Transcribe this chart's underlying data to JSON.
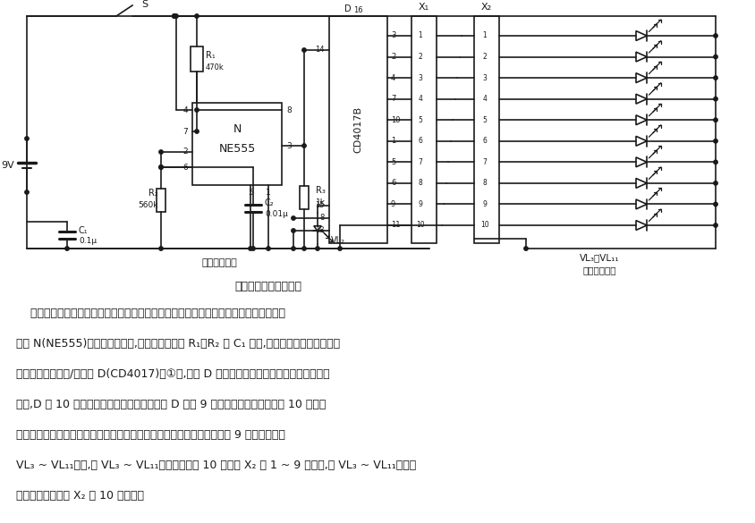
{
  "title": "电缆通断状态指示电路",
  "label_signal_out": "信号输出电路",
  "label_vl_range": "VL₃～VL₁₁",
  "label_status": "状态指示电路",
  "text_body": [
    "    该电路由信号输出电路和状态指示电路组成，它们分别接在被测电缆芯线的两端。时基",
    "电路 N(NE555)组成多谐振荡器,振荡器的频率由 R₁、R₂ 及 C₁ 决定,输出方波信号。该方波信",
    "号送至十进制计数/译码器 D(CD4017)的①脚,作为 D 的计数时钟脉冲。随着时钟脉冲的不断",
    "输入,D 的 10 个输出端会依次出现高电平。将 D 的前 9 个输出端和电源地与一个 10 芯插座",
    "相连。这样就构成了电缆通断指示电路的输入电路部分。状态指示电路由 9 只发光二极管",
    "VL₃ ~ VL₁₁组成,将 VL₃ ~ VL₁₁的正端分别与 10 芯插座 X₂ 的 1 ~ 9 脚相连,将 VL₃ ~ VL₁₁的负端",
    "相互连接起来并与 X₂ 的 10 脚相连。"
  ],
  "bg_color": "#ffffff",
  "line_color": "#1a1a1a"
}
